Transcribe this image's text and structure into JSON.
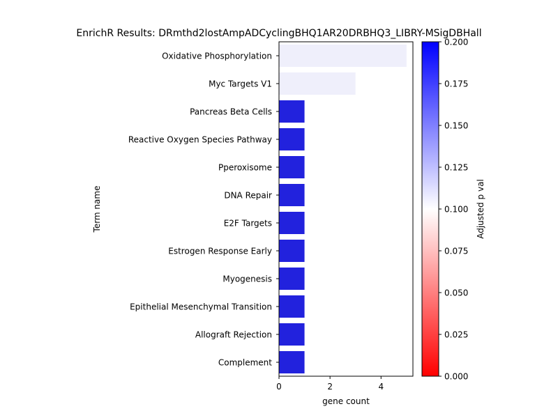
{
  "chart_data": {
    "type": "bar",
    "orientation": "horizontal",
    "title": "EnrichR Results: DRmthd2lostAmpADCyclingBHQ1AR20DRBHQ3_LIBRY-MSigDBHall",
    "xlabel": "gene count",
    "ylabel": "Term name",
    "xlim": [
      0,
      5.25
    ],
    "xticks": [
      0,
      2,
      4
    ],
    "categories": [
      "Oxidative Phosphorylation",
      "Myc Targets V1",
      "Pancreas Beta Cells",
      "Reactive Oxygen Species Pathway",
      "Pperoxisome",
      "DNA Repair",
      "E2F Targets",
      "Estrogen Response Early",
      "Myogenesis",
      "Epithelial Mesenchymal Transition",
      "Allograft Rejection",
      "Complement"
    ],
    "values": [
      5,
      3,
      1,
      1,
      1,
      1,
      1,
      1,
      1,
      1,
      1,
      1
    ],
    "adjusted_p_values": [
      0.115,
      0.115,
      0.19,
      0.19,
      0.19,
      0.19,
      0.19,
      0.19,
      0.19,
      0.19,
      0.19,
      0.19
    ],
    "bar_colors": [
      "#efeffb",
      "#efeffb",
      "#2222dd",
      "#2222dd",
      "#2222dd",
      "#2222dd",
      "#2222dd",
      "#2222dd",
      "#2222dd",
      "#2222dd",
      "#2222dd",
      "#2222dd"
    ],
    "grid": false,
    "colorbar": {
      "label": "Adjusted p val",
      "range": [
        0,
        0.2
      ],
      "ticks": [
        "0.000",
        "0.025",
        "0.050",
        "0.075",
        "0.100",
        "0.125",
        "0.150",
        "0.175",
        "0.200"
      ],
      "colormap": [
        "#ff0000",
        "#ffffff",
        "#0000ff"
      ]
    }
  }
}
